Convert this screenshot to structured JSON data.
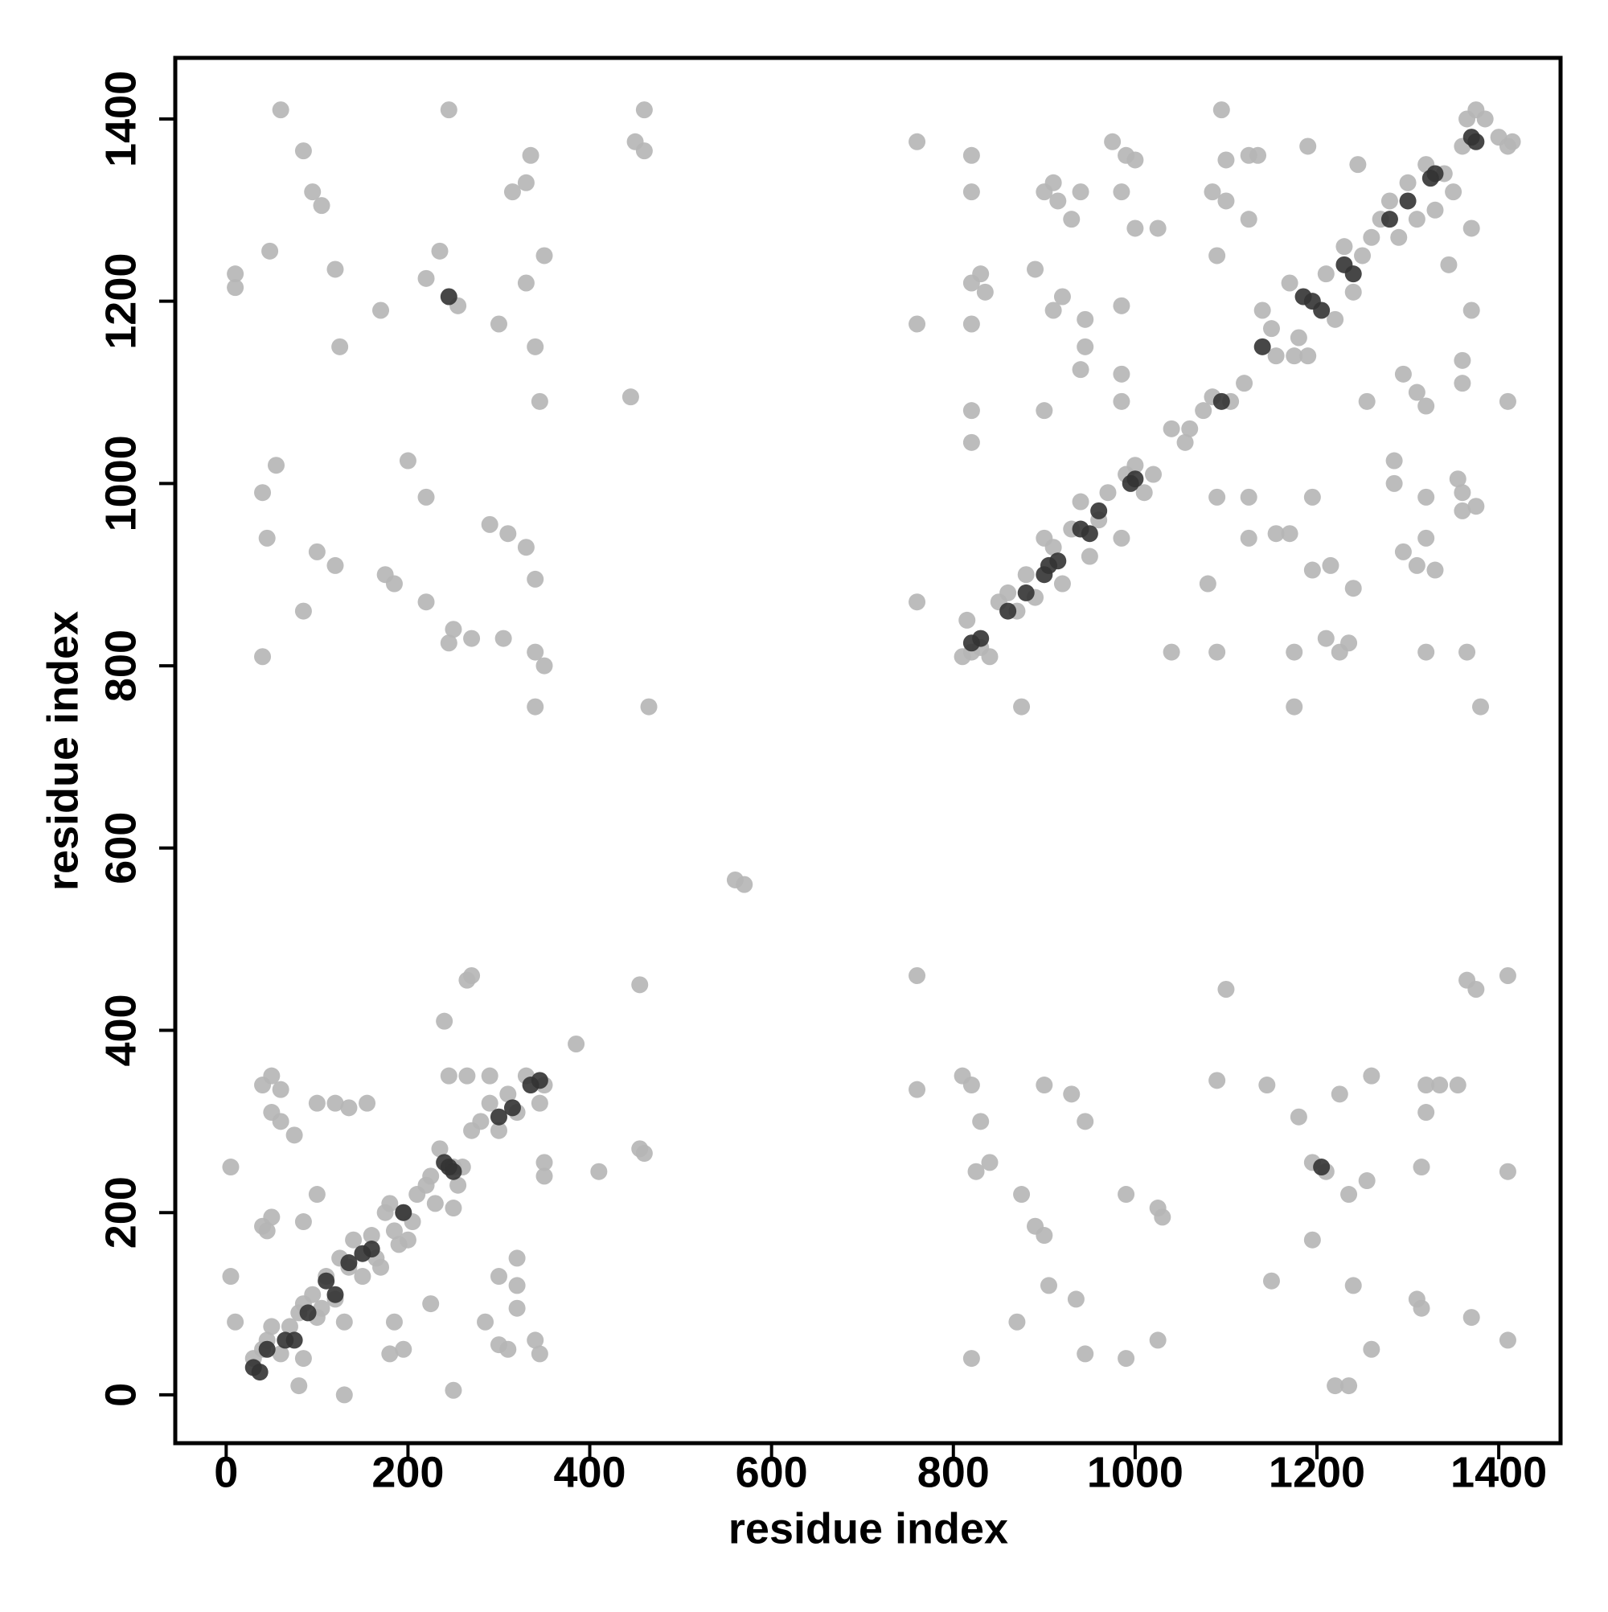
{
  "chart_data": {
    "type": "scatter",
    "xlabel": "residue index",
    "ylabel": "residue index",
    "xlim": [
      -56,
      1468
    ],
    "ylim": [
      -53,
      1467
    ],
    "xticks": [
      0,
      200,
      400,
      600,
      800,
      1000,
      1200,
      1400
    ],
    "yticks": [
      0,
      200,
      400,
      600,
      800,
      1000,
      1200,
      1400
    ],
    "grid": false,
    "series": [
      {
        "color": "#b5b5b5",
        "x": [
          60,
          245,
          460,
          85,
          95,
          105,
          335,
          330,
          315,
          450,
          460,
          48,
          10,
          10,
          120,
          235,
          220,
          350,
          330,
          255,
          170,
          300,
          125,
          340,
          345,
          445,
          55,
          200,
          40,
          220,
          45,
          290,
          310,
          100,
          120,
          330,
          175,
          185,
          340,
          220,
          85,
          250,
          245,
          270,
          305,
          340,
          40,
          350,
          340,
          465,
          5,
          5,
          10,
          40,
          50,
          60,
          50,
          60,
          100,
          120,
          135,
          155,
          40,
          50,
          45,
          85,
          80,
          130,
          180,
          195,
          185,
          100,
          75,
          225,
          250,
          250,
          240,
          265,
          270,
          245,
          265,
          290,
          285,
          300,
          310,
          300,
          320,
          320,
          320,
          340,
          345,
          350,
          350,
          410,
          385,
          455,
          455,
          460,
          85,
          560,
          570,
          760,
          760,
          760,
          820,
          820,
          820,
          830,
          835,
          820,
          820,
          820,
          820,
          875,
          890,
          900,
          910,
          915,
          930,
          940,
          910,
          920,
          900,
          945,
          945,
          940,
          985,
          985,
          975,
          990,
          1000,
          985,
          985,
          1000,
          1025,
          1085,
          1090,
          1095,
          1100,
          1100,
          1125,
          1125,
          1135,
          1090,
          1125,
          1125,
          1155,
          1170,
          1195,
          1195,
          1215,
          1080,
          1040,
          1090,
          1175,
          1175,
          1210,
          1225,
          1235,
          1240,
          1190,
          1245,
          1255,
          1285,
          1285,
          1295,
          1295,
          1310,
          1320,
          1310,
          1330,
          1320,
          1320,
          1320,
          1345,
          1355,
          1360,
          1360,
          1360,
          1360,
          1365,
          1370,
          1370,
          1375,
          1380,
          1410,
          1415,
          760,
          760,
          810,
          820,
          830,
          825,
          840,
          875,
          890,
          900,
          905,
          935,
          945,
          990,
          990,
          1025,
          1030,
          1025,
          870,
          820,
          900,
          930,
          945,
          1090,
          1100,
          1145,
          1150,
          1180,
          1195,
          1195,
          1210,
          1225,
          1220,
          1235,
          1235,
          1240,
          1255,
          1260,
          1260,
          1315,
          1320,
          1320,
          1315,
          1310,
          1335,
          1355,
          1365,
          1370,
          1410,
          1410,
          1410,
          1375,
          30,
          40,
          45,
          50,
          60,
          70,
          80,
          85,
          95,
          100,
          105,
          110,
          120,
          125,
          130,
          135,
          140,
          150,
          160,
          165,
          170,
          175,
          180,
          185,
          190,
          195,
          200,
          205,
          210,
          220,
          225,
          230,
          235,
          250,
          255,
          260,
          270,
          280,
          290,
          300,
          310,
          320,
          330,
          345,
          350,
          810,
          815,
          830,
          840,
          850,
          860,
          870,
          880,
          890,
          900,
          910,
          920,
          930,
          940,
          950,
          960,
          970,
          985,
          990,
          1000,
          1010,
          1020,
          1040,
          1055,
          1060,
          1075,
          1085,
          1105,
          1120,
          1140,
          1150,
          1155,
          1170,
          1175,
          1180,
          1190,
          1210,
          1220,
          1230,
          1240,
          1250,
          1260,
          1270,
          1280,
          1290,
          1300,
          1310,
          1320,
          1330,
          1340,
          1350,
          1360,
          1365,
          1375,
          1385,
          1400,
          1410
        ],
        "y": [
          1410,
          1410,
          1410,
          1365,
          1320,
          1305,
          1360,
          1330,
          1320,
          1375,
          1365,
          1255,
          1230,
          1215,
          1235,
          1255,
          1225,
          1250,
          1220,
          1195,
          1190,
          1175,
          1150,
          1150,
          1090,
          1095,
          1020,
          1025,
          990,
          985,
          940,
          955,
          945,
          925,
          910,
          930,
          900,
          890,
          895,
          870,
          860,
          840,
          825,
          830,
          830,
          815,
          810,
          800,
          755,
          755,
          250,
          130,
          80,
          340,
          350,
          335,
          310,
          300,
          320,
          320,
          315,
          320,
          185,
          195,
          180,
          40,
          10,
          0,
          45,
          50,
          80,
          220,
          285,
          100,
          5,
          205,
          410,
          455,
          460,
          350,
          350,
          350,
          80,
          55,
          50,
          130,
          150,
          95,
          120,
          60,
          45,
          255,
          240,
          245,
          385,
          450,
          270,
          265,
          190,
          565,
          560,
          1375,
          1175,
          870,
          1360,
          1320,
          1220,
          1230,
          1210,
          1175,
          1080,
          1045,
          815,
          755,
          1235,
          1320,
          1330,
          1310,
          1290,
          1320,
          1190,
          1205,
          1080,
          1180,
          1150,
          1125,
          1120,
          1090,
          1375,
          1360,
          1355,
          1320,
          1195,
          1280,
          1280,
          1320,
          1250,
          1410,
          1355,
          1310,
          1290,
          1360,
          1360,
          985,
          985,
          940,
          945,
          945,
          985,
          905,
          910,
          890,
          815,
          815,
          815,
          755,
          830,
          815,
          825,
          885,
          1370,
          1350,
          1090,
          1025,
          1000,
          1120,
          925,
          1100,
          1085,
          910,
          905,
          985,
          940,
          815,
          1240,
          1005,
          1110,
          1135,
          990,
          970,
          815,
          1190,
          1280,
          975,
          755,
          1090,
          1375,
          460,
          335,
          350,
          340,
          300,
          245,
          255,
          220,
          185,
          175,
          120,
          105,
          45,
          40,
          220,
          205,
          195,
          60,
          80,
          40,
          340,
          330,
          300,
          345,
          445,
          340,
          125,
          305,
          170,
          255,
          245,
          330,
          10,
          10,
          220,
          120,
          235,
          350,
          50,
          250,
          340,
          310,
          95,
          105,
          340,
          340,
          455,
          85,
          460,
          245,
          60,
          445,
          40,
          50,
          60,
          75,
          45,
          75,
          90,
          100,
          110,
          85,
          95,
          130,
          105,
          150,
          80,
          140,
          170,
          130,
          175,
          150,
          140,
          200,
          210,
          180,
          165,
          200,
          170,
          190,
          220,
          230,
          240,
          210,
          270,
          250,
          230,
          250,
          290,
          300,
          320,
          290,
          330,
          310,
          350,
          320,
          340,
          810,
          850,
          820,
          810,
          870,
          880,
          860,
          900,
          875,
          940,
          930,
          890,
          950,
          980,
          920,
          960,
          990,
          940,
          1010,
          1020,
          990,
          1010,
          1060,
          1045,
          1060,
          1080,
          1095,
          1090,
          1110,
          1190,
          1170,
          1140,
          1220,
          1140,
          1160,
          1140,
          1230,
          1180,
          1260,
          1210,
          1250,
          1270,
          1290,
          1310,
          1270,
          1330,
          1290,
          1350,
          1300,
          1340,
          1320,
          1370,
          1400,
          1410,
          1400,
          1380,
          1370
        ]
      },
      {
        "color": "#333333",
        "x": [
          30,
          37,
          45,
          65,
          75,
          90,
          110,
          120,
          135,
          150,
          160,
          195,
          240,
          245,
          250,
          300,
          315,
          335,
          345,
          245,
          820,
          830,
          860,
          880,
          900,
          905,
          915,
          940,
          950,
          960,
          995,
          1000,
          1095,
          1140,
          1185,
          1195,
          1205,
          1230,
          1240,
          1280,
          1300,
          1325,
          1330,
          1370,
          1375,
          1205
        ],
        "y": [
          30,
          25,
          50,
          60,
          60,
          90,
          125,
          110,
          145,
          155,
          160,
          200,
          255,
          250,
          245,
          305,
          315,
          340,
          345,
          1205,
          825,
          830,
          860,
          880,
          900,
          910,
          915,
          950,
          945,
          970,
          1000,
          1005,
          1090,
          1150,
          1205,
          1200,
          1190,
          1240,
          1230,
          1290,
          1310,
          1335,
          1340,
          1380,
          1375,
          250
        ]
      }
    ]
  }
}
